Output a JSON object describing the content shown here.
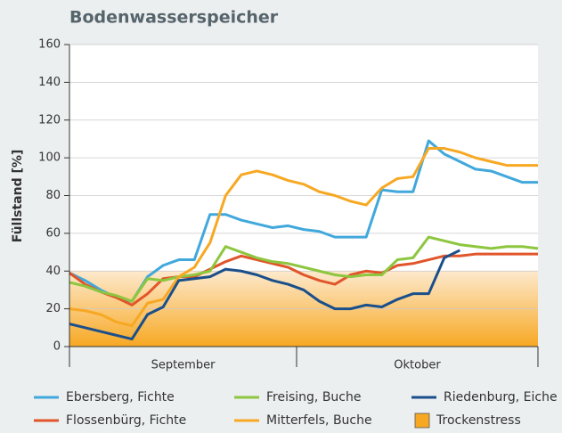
{
  "chart_data": {
    "type": "line",
    "title": "Bodenwasserspeicher",
    "y_label": "Füllstand [%]",
    "xlabels": [
      "September",
      "Oktober"
    ],
    "ylim": [
      0,
      160
    ],
    "yticks": [
      0,
      20,
      40,
      60,
      80,
      100,
      120,
      140,
      160
    ],
    "stress_band": {
      "name": "Trockenstress",
      "range": [
        0,
        40
      ],
      "color": "#f7a823"
    },
    "series": [
      {
        "name": "Ebersberg, Fichte",
        "color": "#41a8dc",
        "values": [
          39,
          35,
          30,
          26,
          24,
          37,
          43,
          46,
          46,
          70,
          70,
          67,
          65,
          63,
          64,
          62,
          61,
          58,
          58,
          58,
          83,
          82,
          82,
          109,
          102,
          98,
          94,
          93,
          90,
          87,
          87
        ]
      },
      {
        "name": "Flossenbürg, Fichte",
        "color": "#e1552a",
        "values": [
          39,
          33,
          29,
          26,
          22,
          28,
          36,
          37,
          37,
          41,
          45,
          48,
          46,
          44,
          42,
          38,
          35,
          33,
          38,
          40,
          39,
          43,
          44,
          46,
          48,
          48,
          49,
          49,
          49,
          49,
          49
        ]
      },
      {
        "name": "Freising, Buche",
        "color": "#8dc63f",
        "values": [
          34,
          32,
          29,
          27,
          24,
          36,
          35,
          37,
          38,
          40,
          53,
          50,
          47,
          45,
          44,
          42,
          40,
          38,
          37,
          38,
          38,
          46,
          47,
          58,
          56,
          54,
          53,
          52,
          53,
          53,
          52
        ]
      },
      {
        "name": "Mitterfels, Buche",
        "color": "#f7a823",
        "values": [
          20,
          19,
          17,
          13,
          11,
          23,
          25,
          37,
          42,
          55,
          80,
          91,
          93,
          91,
          88,
          86,
          82,
          80,
          77,
          75,
          84,
          89,
          90,
          105,
          105,
          103,
          100,
          98,
          96,
          96,
          96
        ]
      },
      {
        "name": "Riedenburg, Eiche",
        "color": "#1a4f8b",
        "values": [
          12,
          10,
          8,
          6,
          4,
          17,
          21,
          35,
          36,
          37,
          41,
          40,
          38,
          35,
          33,
          30,
          24,
          20,
          20,
          22,
          21,
          25,
          28,
          28,
          47,
          51,
          null,
          null,
          null,
          null,
          null
        ]
      }
    ]
  }
}
